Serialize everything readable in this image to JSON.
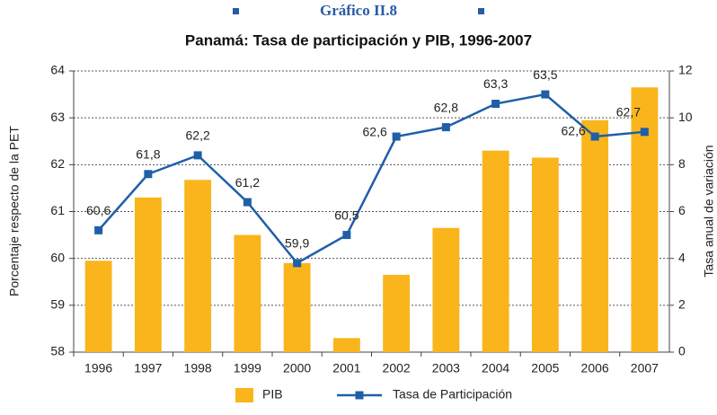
{
  "chart_data": {
    "type": "bar+line",
    "title": "Gráfico II.8",
    "subtitle": "Panamá: Tasa de participación y PIB, 1996-2007",
    "y_label": "Porcentaje respecto de la PET",
    "y2_label": "Tasa anual de variación",
    "categories": [
      "1996",
      "1997",
      "1998",
      "1999",
      "2000",
      "2001",
      "2002",
      "2003",
      "2004",
      "2005",
      "2006",
      "2007"
    ],
    "ylim": [
      58,
      64
    ],
    "yticks": [
      58,
      59,
      60,
      61,
      62,
      63,
      64
    ],
    "y2lim": [
      0,
      12
    ],
    "y2ticks": [
      0,
      2,
      4,
      6,
      8,
      10,
      12
    ],
    "grid": true,
    "series": [
      {
        "name": "PIB",
        "type": "bar",
        "axis": "y2",
        "color": "#f9b51b",
        "values": [
          3.9,
          6.6,
          7.35,
          5.0,
          3.8,
          0.6,
          3.3,
          5.3,
          8.6,
          8.3,
          9.9,
          11.3
        ]
      },
      {
        "name": "Tasa de Participación",
        "type": "line",
        "color": "#1f5fa8",
        "values": [
          60.6,
          61.8,
          62.2,
          61.2,
          59.9,
          60.5,
          62.6,
          62.8,
          63.3,
          63.5,
          62.6,
          62.7
        ],
        "value_labels": [
          "60,6",
          "61,8",
          "62,2",
          "61,2",
          "59,9",
          "60,5",
          "62,6",
          "62,8",
          "63,3",
          "63,5",
          "62,6",
          "62,7"
        ]
      }
    ]
  }
}
